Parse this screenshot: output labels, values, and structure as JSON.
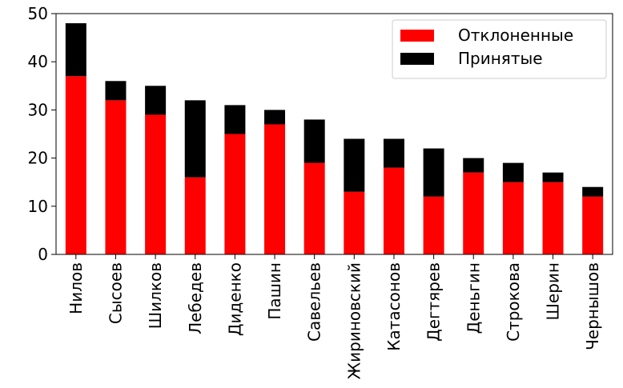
{
  "chart_data": {
    "type": "stacked_bar",
    "categories": [
      "Нилов",
      "Сысоев",
      "Шилков",
      "Лебедев",
      "Диденко",
      "Пашин",
      "Савельев",
      "Жириновский",
      "Катасонов",
      "Дегтярев",
      "Деньгин",
      "Строкова",
      "Шерин",
      "Чернышов"
    ],
    "series": [
      {
        "name": "Отклоненные",
        "color": "#ff0000",
        "values": [
          37,
          32,
          29,
          16,
          25,
          27,
          19,
          13,
          18,
          12,
          17,
          15,
          15,
          12
        ]
      },
      {
        "name": "Принятые",
        "color": "#000000",
        "values": [
          11,
          4,
          6,
          16,
          6,
          3,
          9,
          11,
          6,
          10,
          3,
          4,
          2,
          2
        ]
      }
    ],
    "ylim": [
      0,
      50
    ],
    "yticks": [
      0,
      10,
      20,
      30,
      40,
      50
    ],
    "grid": false,
    "legend": "upper right"
  }
}
